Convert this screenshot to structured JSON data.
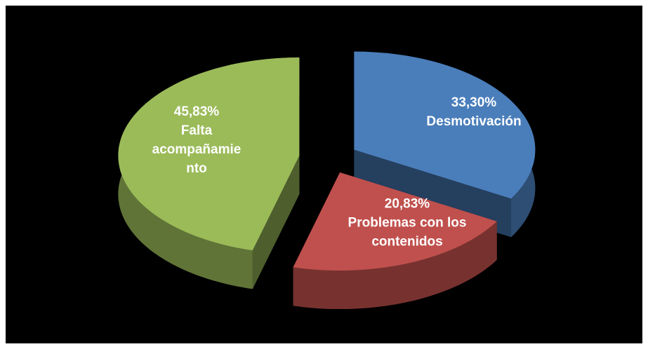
{
  "chart_data": {
    "type": "pie3d",
    "categories": [
      "Desmotivación",
      "Problemas con los contenidos",
      "Falta acompañamiento"
    ],
    "values": [
      33.3,
      20.83,
      45.83
    ],
    "value_labels": [
      "33,30%",
      "20,83%",
      "45,83%"
    ],
    "colors": [
      "#4a7ebb",
      "#c0504d",
      "#9bbb59"
    ]
  }
}
